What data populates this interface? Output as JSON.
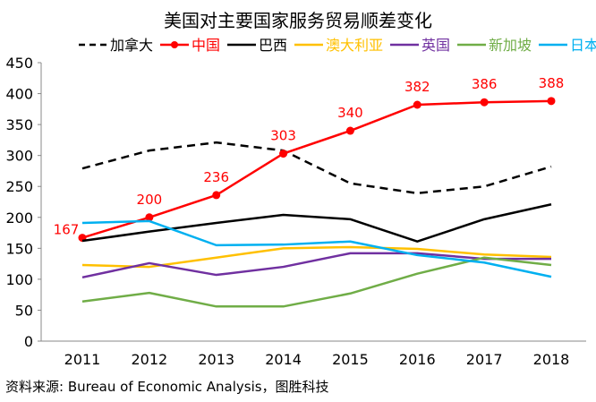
{
  "chart_data": {
    "type": "line",
    "title": "美国对主要国家服务贸易顺差变化",
    "xlabel": "",
    "ylabel": "",
    "ylim": [
      0,
      450
    ],
    "yticks": [
      0,
      50,
      100,
      150,
      200,
      250,
      300,
      350,
      400,
      450
    ],
    "grid": false,
    "legend_position": "top",
    "categories": [
      "2011",
      "2012",
      "2013",
      "2014",
      "2015",
      "2016",
      "2017",
      "2018"
    ],
    "series": [
      {
        "name": "加拿大",
        "color": "#000000",
        "dashed": true,
        "values": [
          279,
          308,
          321,
          308,
          255,
          239,
          250,
          282
        ]
      },
      {
        "name": "中国",
        "color": "#ff0000",
        "markers": true,
        "labels": true,
        "values": [
          167,
          200,
          236,
          303,
          340,
          382,
          386,
          388
        ]
      },
      {
        "name": "巴西",
        "color": "#000000",
        "values": [
          162,
          177,
          191,
          204,
          197,
          161,
          197,
          221
        ]
      },
      {
        "name": "澳大利亚",
        "color": "#ffc000",
        "values": [
          123,
          120,
          135,
          150,
          152,
          149,
          140,
          136
        ]
      },
      {
        "name": "英国",
        "color": "#7030a0",
        "values": [
          103,
          126,
          107,
          120,
          142,
          142,
          133,
          133
        ]
      },
      {
        "name": "新加坡",
        "color": "#70ad47",
        "values": [
          64,
          78,
          56,
          56,
          77,
          109,
          135,
          123
        ]
      },
      {
        "name": "日本",
        "color": "#00b0f0",
        "values": [
          191,
          194,
          155,
          156,
          161,
          139,
          127,
          104
        ]
      }
    ],
    "source": "资料来源: Bureau of Economic Analysis，图胜科技"
  }
}
